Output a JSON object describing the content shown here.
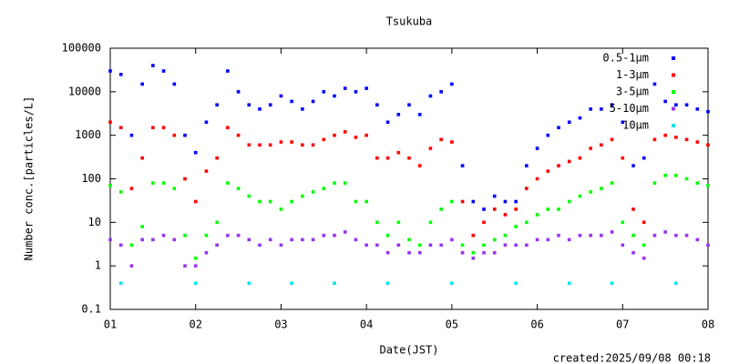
{
  "chart_data": {
    "type": "scatter",
    "title": "Tsukuba",
    "ylabel": "Number conc.[particles/L]",
    "xlabel": "Date(JST)",
    "annotation": "created:2025/09/08 00:18",
    "log_y": true,
    "grid": false,
    "legend": "upper right",
    "xlim": [
      1,
      8
    ],
    "xticks": [
      {
        "value": 1,
        "label": "01"
      },
      {
        "value": 2,
        "label": "02"
      },
      {
        "value": 3,
        "label": "03"
      },
      {
        "value": 4,
        "label": "04"
      },
      {
        "value": 5,
        "label": "05"
      },
      {
        "value": 6,
        "label": "06"
      },
      {
        "value": 7,
        "label": "07"
      },
      {
        "value": 8,
        "label": "08"
      }
    ],
    "ylim": [
      0.1,
      100000
    ],
    "yticks": [
      0.1,
      1,
      10,
      100,
      1000,
      10000,
      100000
    ],
    "x": [
      1,
      1.125,
      1.25,
      1.375,
      1.5,
      1.625,
      1.75,
      1.875,
      2,
      2.125,
      2.25,
      2.375,
      2.5,
      2.625,
      2.75,
      2.875,
      3,
      3.125,
      3.25,
      3.375,
      3.5,
      3.625,
      3.75,
      3.875,
      4,
      4.125,
      4.25,
      4.375,
      4.5,
      4.625,
      4.75,
      4.875,
      5,
      5.125,
      5.25,
      5.375,
      5.5,
      5.625,
      5.75,
      5.875,
      6,
      6.125,
      6.25,
      6.375,
      6.5,
      6.625,
      6.75,
      6.875,
      7,
      7.125,
      7.25,
      7.375,
      7.5,
      7.625,
      7.75,
      7.875,
      8
    ],
    "series": [
      {
        "name": "0.5-1μm",
        "color": "#0000ff",
        "values": [
          30000,
          25000,
          1000,
          15000,
          40000,
          30000,
          15000,
          1000,
          400,
          2000,
          5000,
          30000,
          10000,
          5000,
          4000,
          5000,
          8000,
          6000,
          4000,
          6000,
          10000,
          8000,
          12000,
          10000,
          12000,
          5000,
          2000,
          3000,
          5000,
          3000,
          8000,
          10000,
          15000,
          200,
          30,
          20,
          40,
          30,
          30,
          200,
          500,
          1000,
          1500,
          2000,
          2500,
          4000,
          4000,
          5000,
          2000,
          200,
          300,
          15000,
          6000,
          5000,
          5000,
          4000,
          3500
        ]
      },
      {
        "name": "1-3μm",
        "color": "#ff0000",
        "values": [
          2000,
          1500,
          60,
          300,
          1500,
          1500,
          1000,
          100,
          30,
          150,
          300,
          1500,
          1000,
          600,
          600,
          600,
          700,
          700,
          600,
          600,
          800,
          1000,
          1200,
          900,
          1000,
          300,
          300,
          400,
          300,
          200,
          500,
          800,
          700,
          30,
          5,
          10,
          20,
          15,
          20,
          60,
          100,
          150,
          200,
          250,
          300,
          500,
          600,
          800,
          300,
          20,
          10,
          800,
          1000,
          900,
          800,
          700,
          600
        ]
      },
      {
        "name": "3-5μm",
        "color": "#00ff00",
        "values": [
          70,
          50,
          3,
          8,
          80,
          80,
          60,
          5,
          1.5,
          5,
          10,
          80,
          60,
          40,
          30,
          30,
          20,
          30,
          40,
          50,
          60,
          80,
          80,
          30,
          30,
          10,
          5,
          10,
          4,
          3,
          10,
          20,
          30,
          3,
          2,
          3,
          4,
          5,
          8,
          10,
          15,
          20,
          20,
          30,
          40,
          50,
          60,
          80,
          10,
          5,
          3,
          80,
          120,
          120,
          100,
          80,
          70
        ]
      },
      {
        "name": "5-10μm",
        "color": "#9933ee",
        "values": [
          4,
          3,
          1,
          4,
          4,
          5,
          4,
          1,
          1,
          2,
          3,
          5,
          5,
          4,
          3,
          4,
          3,
          4,
          4,
          4,
          5,
          5,
          6,
          4,
          3,
          3,
          2,
          3,
          2,
          2,
          3,
          3,
          4,
          2,
          1.5,
          2,
          2,
          3,
          3,
          3,
          4,
          4,
          5,
          4,
          5,
          5,
          5,
          6,
          3,
          2,
          1.5,
          5,
          6,
          5,
          5,
          4,
          3
        ]
      },
      {
        "name": "10μm",
        "color": "#00e5ee",
        "values": [
          null,
          0.4,
          null,
          null,
          null,
          null,
          null,
          null,
          0.4,
          null,
          null,
          null,
          null,
          0.4,
          null,
          null,
          null,
          0.4,
          null,
          null,
          null,
          0.4,
          null,
          null,
          null,
          null,
          0.4,
          null,
          null,
          null,
          null,
          null,
          0.4,
          null,
          null,
          null,
          null,
          null,
          0.4,
          null,
          null,
          null,
          null,
          0.4,
          null,
          null,
          null,
          0.4,
          null,
          null,
          null,
          null,
          null,
          0.4,
          null,
          null,
          null
        ]
      }
    ]
  }
}
